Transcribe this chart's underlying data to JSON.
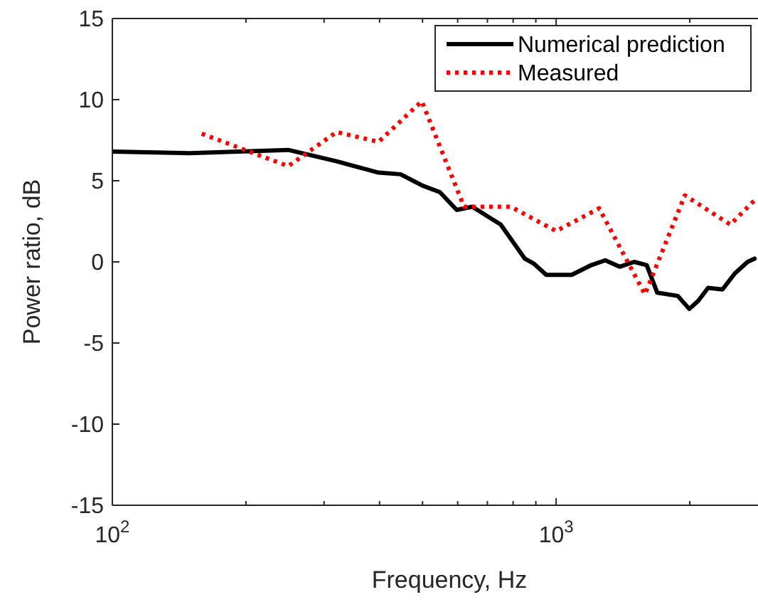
{
  "chart_data": {
    "type": "line",
    "xlabel": "Frequency, Hz",
    "ylabel": "Power ratio, dB",
    "log": "x",
    "xlim": [
      100,
      2850
    ],
    "ylim": [
      -15,
      15
    ],
    "xticks": [
      {
        "value": 100,
        "label": "10$^{2}$"
      },
      {
        "value": 200,
        "label": null
      },
      {
        "value": 300,
        "label": null
      },
      {
        "value": 400,
        "label": null
      },
      {
        "value": 500,
        "label": null
      },
      {
        "value": 600,
        "label": null
      },
      {
        "value": 700,
        "label": null
      },
      {
        "value": 800,
        "label": null
      },
      {
        "value": 900,
        "label": null
      },
      {
        "value": 1000,
        "label": "10$^{3}$"
      },
      {
        "value": 2000,
        "label": null
      }
    ],
    "yticks": [
      -15,
      -10,
      -5,
      0,
      5,
      10,
      15
    ],
    "grid": false,
    "legend": "top right",
    "series": [
      {
        "name": "Numerical prediction",
        "color": "#000000",
        "line_style": "solid",
        "x": [
          100,
          149,
          249,
          320,
          398,
          446,
          500,
          547,
          597,
          647,
          750,
          850,
          890,
          950,
          1084,
          1200,
          1290,
          1390,
          1500,
          1600,
          1690,
          1880,
          1995,
          2090,
          2200,
          2370,
          2530,
          2700,
          2800
        ],
        "values": [
          6.8,
          6.7,
          6.9,
          6.2,
          5.5,
          5.4,
          4.7,
          4.3,
          3.2,
          3.4,
          2.3,
          0.2,
          -0.1,
          -0.8,
          -0.8,
          -0.2,
          0.1,
          -0.3,
          0,
          -0.2,
          -1.9,
          -2.1,
          -2.9,
          -2.4,
          -1.6,
          -1.7,
          -0.7,
          0,
          0.2
        ]
      },
      {
        "name": "Measured",
        "color": "#ff0000",
        "line_style": "dotted",
        "x": [
          159,
          249,
          320,
          398,
          498,
          620,
          790,
          1000,
          1250,
          1585,
          1950,
          2470,
          2800
        ],
        "values": [
          7.9,
          5.9,
          8.0,
          7.4,
          9.9,
          3.4,
          3.4,
          1.9,
          3.3,
          -2.0,
          4.1,
          2.3,
          3.8
        ]
      }
    ]
  }
}
